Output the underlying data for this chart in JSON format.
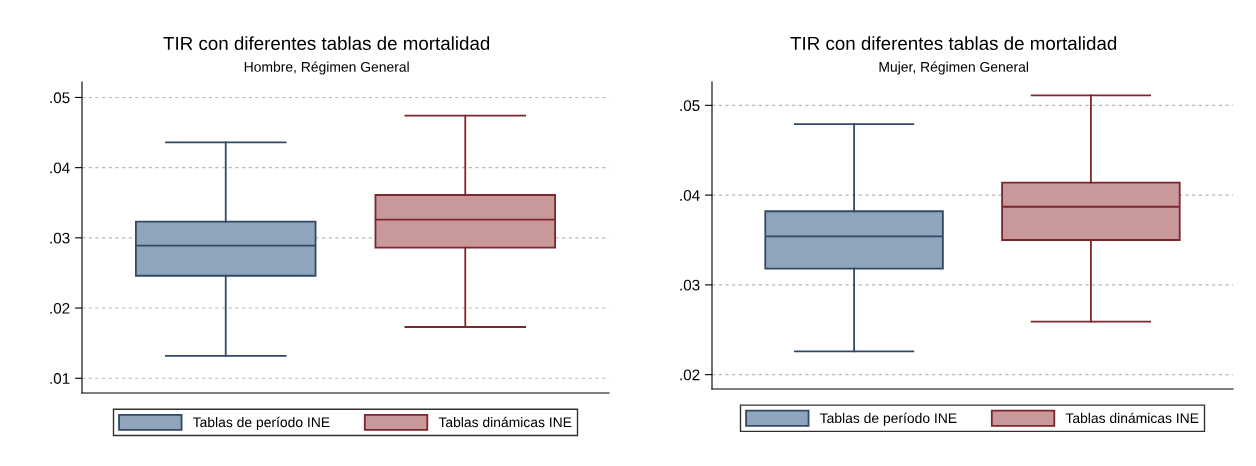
{
  "chart_data": [
    {
      "type": "box",
      "title": "TIR con diferentes tablas de mortalidad",
      "subtitle": "Hombre, Régimen General",
      "categories": [
        null
      ],
      "ylim": [
        0.0079,
        0.0522
      ],
      "yticks": [
        {
          "value": 0.01,
          "label": ".01"
        },
        {
          "value": 0.02,
          "label": ".02"
        },
        {
          "value": 0.03,
          "label": ".03"
        },
        {
          "value": 0.04,
          "label": ".04"
        },
        {
          "value": 0.05,
          "label": ".05"
        }
      ],
      "grid": "y",
      "legend": "bottom",
      "series": [
        {
          "name": "Tablas de período INE",
          "color": "#8ea5bb",
          "boxes": [
            {
              "low": 0.0132,
              "q1": 0.0246,
              "median": 0.0289,
              "q3": 0.0323,
              "high": 0.0436
            }
          ]
        },
        {
          "name": "Tablas dinámicas INE",
          "color": "#c8989a",
          "boxes": [
            {
              "low": 0.0173,
              "q1": 0.0286,
              "median": 0.0326,
              "q3": 0.0361,
              "high": 0.0474
            }
          ]
        }
      ]
    },
    {
      "type": "box",
      "title": "TIR con diferentes tablas de mortalidad",
      "subtitle": "Mujer, Régimen General",
      "categories": [
        null
      ],
      "ylim": [
        0.0184,
        0.0526
      ],
      "yticks": [
        {
          "value": 0.02,
          "label": ".02"
        },
        {
          "value": 0.03,
          "label": ".03"
        },
        {
          "value": 0.04,
          "label": ".04"
        },
        {
          "value": 0.05,
          "label": ".05"
        }
      ],
      "grid": "y",
      "legend": "bottom",
      "series": [
        {
          "name": "Tablas de período INE",
          "color": "#8ea5bb",
          "boxes": [
            {
              "low": 0.0226,
              "q1": 0.0318,
              "median": 0.0354,
              "q3": 0.0382,
              "high": 0.0479
            }
          ]
        },
        {
          "name": "Tablas dinámicas INE",
          "color": "#c8989a",
          "boxes": [
            {
              "low": 0.0259,
              "q1": 0.035,
              "median": 0.0387,
              "q3": 0.0414,
              "high": 0.0511
            }
          ]
        }
      ]
    }
  ]
}
